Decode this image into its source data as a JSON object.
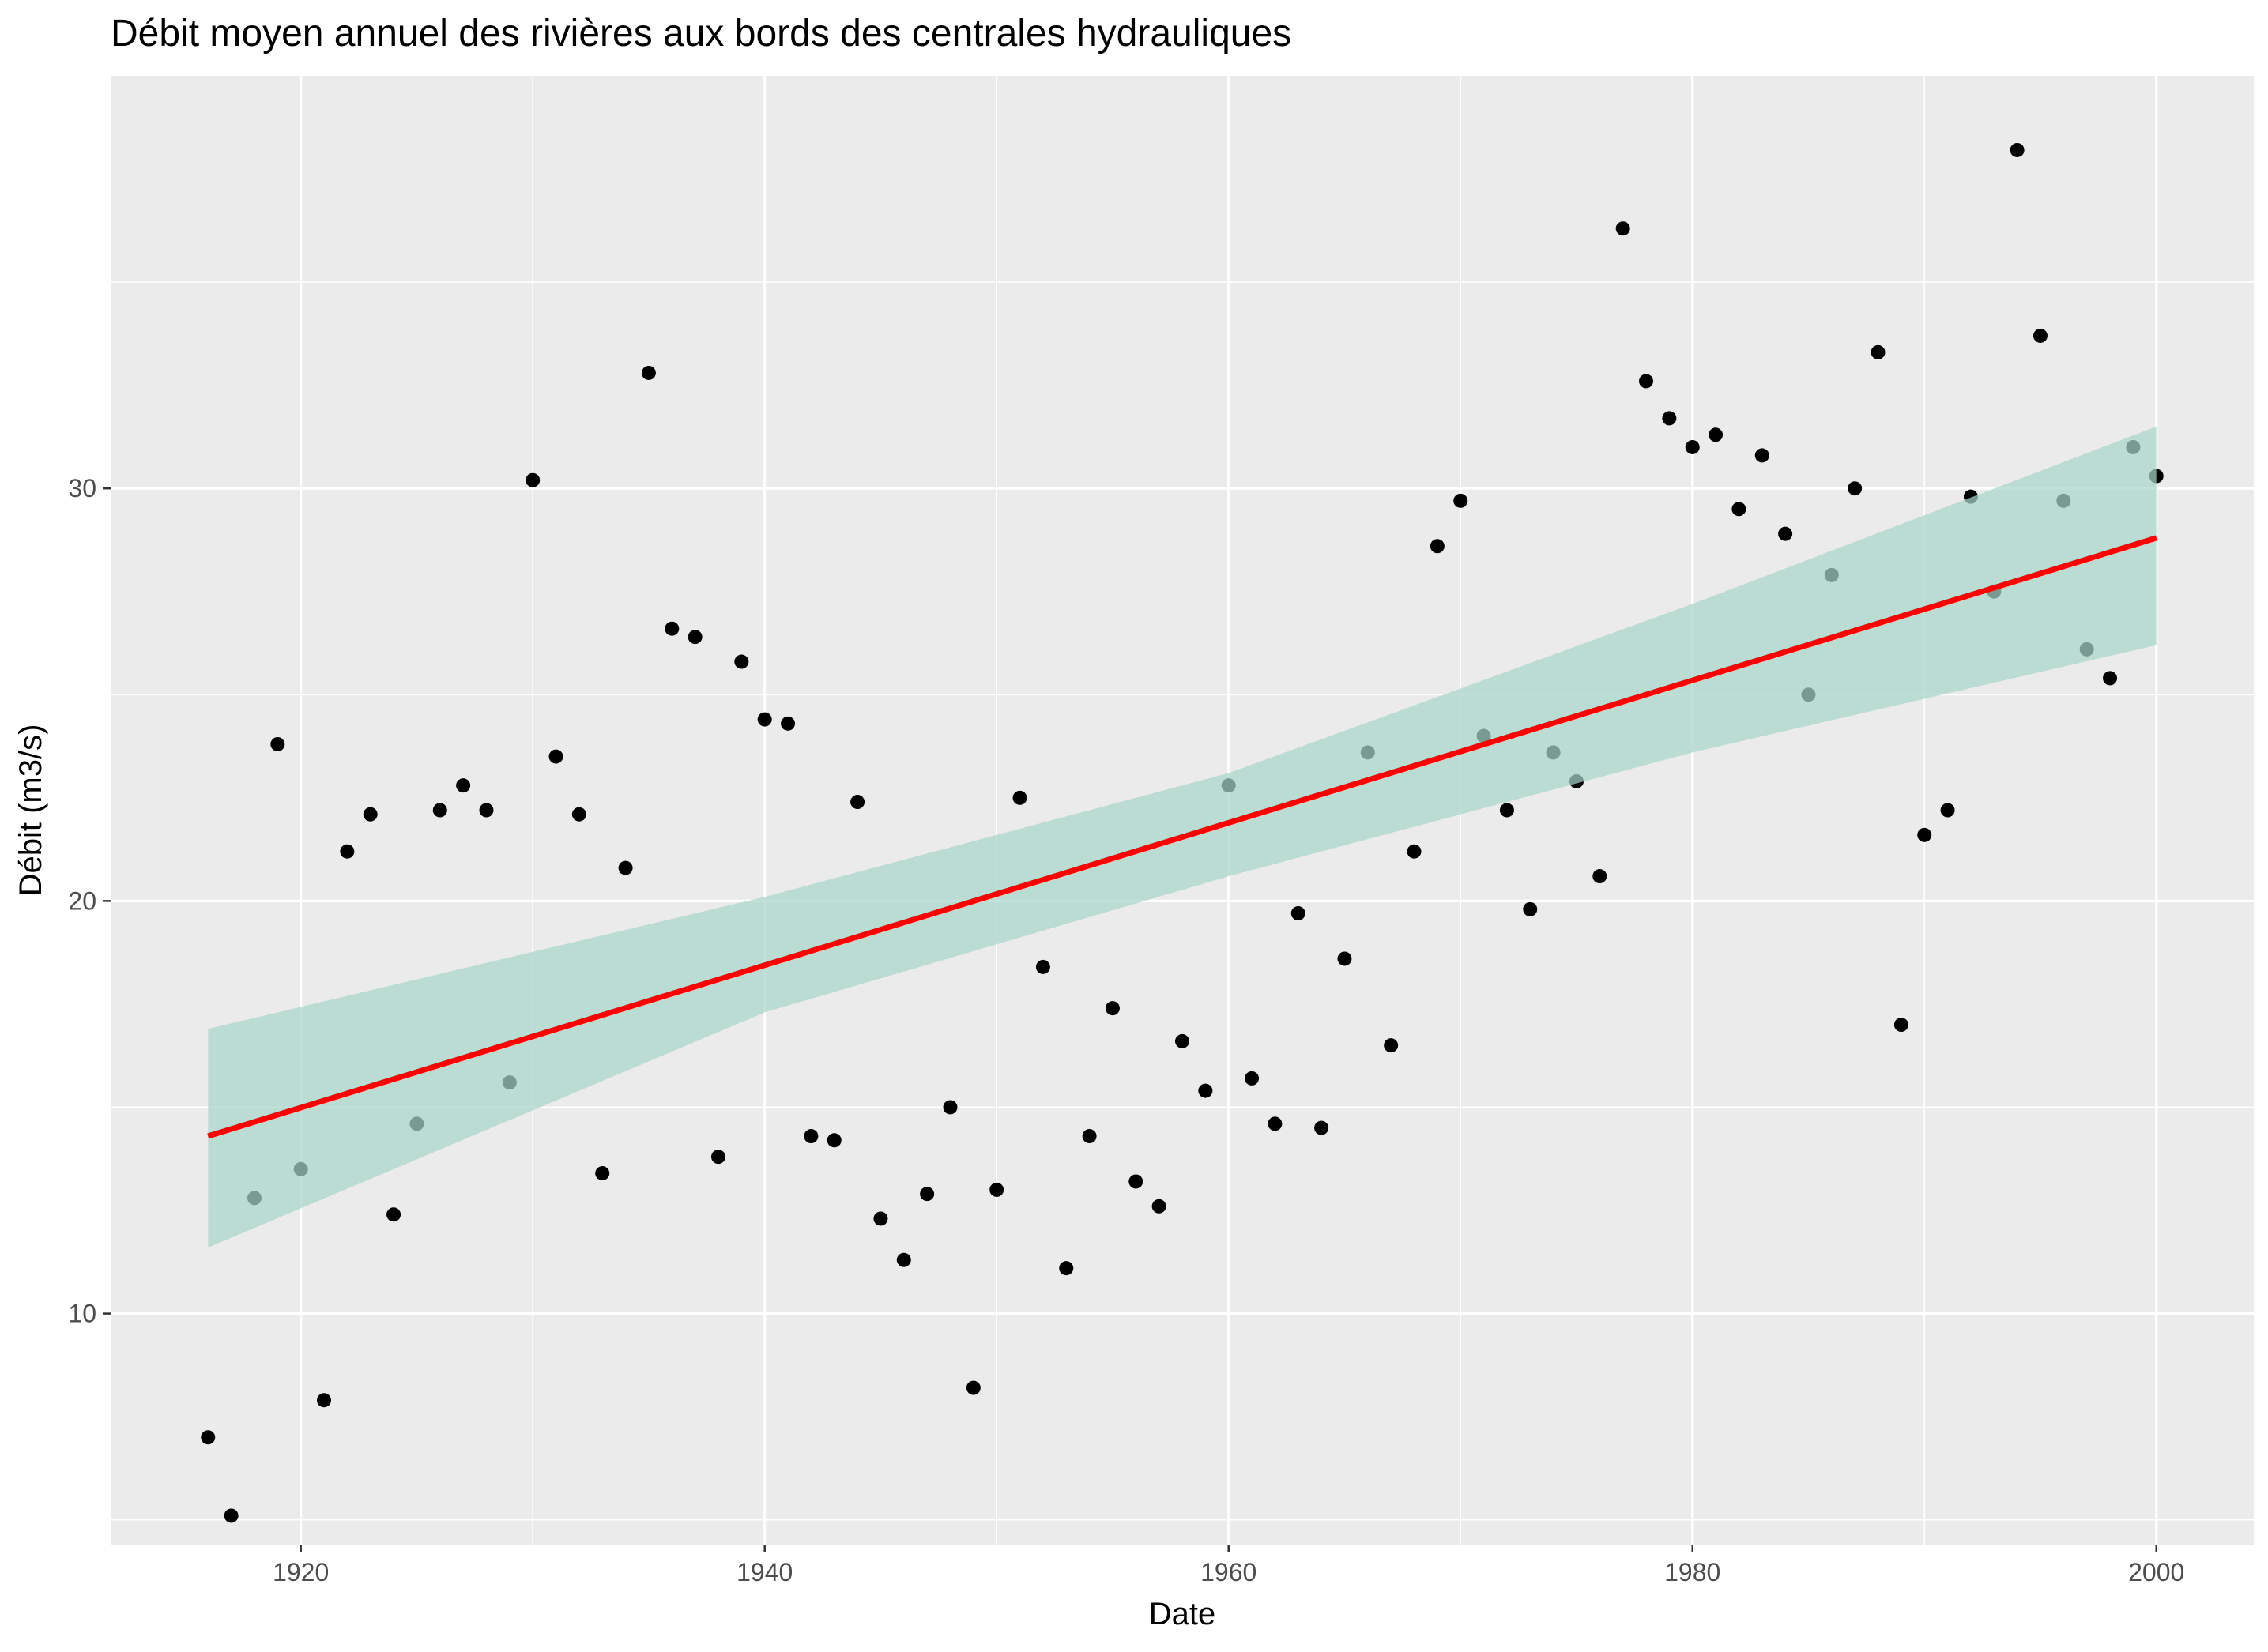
{
  "chart_data": {
    "type": "scatter",
    "title": "Débit moyen annuel des rivières aux bords des centrales hydrauliques",
    "xlabel": "Date",
    "ylabel": "Débit (m3/s)",
    "xlim": [
      1911.8,
      2004.2
    ],
    "ylim": [
      4.4,
      40.0
    ],
    "x_ticks": [
      1920,
      1940,
      1960,
      1980,
      2000
    ],
    "y_ticks": [
      10,
      20,
      30
    ],
    "grid": true,
    "legend": "none",
    "colors": {
      "panel": "#ebebeb",
      "grid": "#ffffff",
      "points": "#000000",
      "trend": "#ff0000",
      "band": "#a8d5c7"
    },
    "points": [
      {
        "x": 1916,
        "y": 7.0
      },
      {
        "x": 1917,
        "y": 5.1
      },
      {
        "x": 1918,
        "y": 12.8
      },
      {
        "x": 1919,
        "y": 23.8
      },
      {
        "x": 1920,
        "y": 13.5
      },
      {
        "x": 1921,
        "y": 7.9
      },
      {
        "x": 1922,
        "y": 21.2
      },
      {
        "x": 1923,
        "y": 22.1
      },
      {
        "x": 1924,
        "y": 12.4
      },
      {
        "x": 1925,
        "y": 14.6
      },
      {
        "x": 1926,
        "y": 22.2
      },
      {
        "x": 1927,
        "y": 22.8
      },
      {
        "x": 1928,
        "y": 22.2
      },
      {
        "x": 1929,
        "y": 15.6
      },
      {
        "x": 1930,
        "y": 30.2
      },
      {
        "x": 1931,
        "y": 23.5
      },
      {
        "x": 1932,
        "y": 22.1
      },
      {
        "x": 1933,
        "y": 13.4
      },
      {
        "x": 1934,
        "y": 20.8
      },
      {
        "x": 1935,
        "y": 32.8
      },
      {
        "x": 1936,
        "y": 26.6
      },
      {
        "x": 1937,
        "y": 26.4
      },
      {
        "x": 1938,
        "y": 13.8
      },
      {
        "x": 1939,
        "y": 25.8
      },
      {
        "x": 1940,
        "y": 24.4
      },
      {
        "x": 1941,
        "y": 24.3
      },
      {
        "x": 1942,
        "y": 14.3
      },
      {
        "x": 1943,
        "y": 14.2
      },
      {
        "x": 1944,
        "y": 22.4
      },
      {
        "x": 1945,
        "y": 12.3
      },
      {
        "x": 1946,
        "y": 11.3
      },
      {
        "x": 1947,
        "y": 12.9
      },
      {
        "x": 1948,
        "y": 15.0
      },
      {
        "x": 1949,
        "y": 8.2
      },
      {
        "x": 1950,
        "y": 13.0
      },
      {
        "x": 1951,
        "y": 22.5
      },
      {
        "x": 1952,
        "y": 18.4
      },
      {
        "x": 1953,
        "y": 11.1
      },
      {
        "x": 1954,
        "y": 14.3
      },
      {
        "x": 1955,
        "y": 17.4
      },
      {
        "x": 1956,
        "y": 13.2
      },
      {
        "x": 1957,
        "y": 12.6
      },
      {
        "x": 1958,
        "y": 16.6
      },
      {
        "x": 1959,
        "y": 15.4
      },
      {
        "x": 1960,
        "y": 22.8
      },
      {
        "x": 1961,
        "y": 15.7
      },
      {
        "x": 1962,
        "y": 14.6
      },
      {
        "x": 1963,
        "y": 19.7
      },
      {
        "x": 1964,
        "y": 14.5
      },
      {
        "x": 1965,
        "y": 18.6
      },
      {
        "x": 1966,
        "y": 23.6
      },
      {
        "x": 1967,
        "y": 16.5
      },
      {
        "x": 1968,
        "y": 21.2
      },
      {
        "x": 1969,
        "y": 28.6
      },
      {
        "x": 1970,
        "y": 29.7
      },
      {
        "x": 1971,
        "y": 24.0
      },
      {
        "x": 1972,
        "y": 22.2
      },
      {
        "x": 1973,
        "y": 19.8
      },
      {
        "x": 1974,
        "y": 23.6
      },
      {
        "x": 1975,
        "y": 22.9
      },
      {
        "x": 1976,
        "y": 20.6
      },
      {
        "x": 1977,
        "y": 36.3
      },
      {
        "x": 1978,
        "y": 32.6
      },
      {
        "x": 1979,
        "y": 31.7
      },
      {
        "x": 1980,
        "y": 31.0
      },
      {
        "x": 1981,
        "y": 31.3
      },
      {
        "x": 1982,
        "y": 29.5
      },
      {
        "x": 1983,
        "y": 30.8
      },
      {
        "x": 1984,
        "y": 28.9
      },
      {
        "x": 1985,
        "y": 25.0
      },
      {
        "x": 1986,
        "y": 27.9
      },
      {
        "x": 1987,
        "y": 30.0
      },
      {
        "x": 1988,
        "y": 33.3
      },
      {
        "x": 1989,
        "y": 17.0
      },
      {
        "x": 1990,
        "y": 21.6
      },
      {
        "x": 1991,
        "y": 22.2
      },
      {
        "x": 1992,
        "y": 29.8
      },
      {
        "x": 1993,
        "y": 27.5
      },
      {
        "x": 1994,
        "y": 38.2
      },
      {
        "x": 1995,
        "y": 33.7
      },
      {
        "x": 1996,
        "y": 29.7
      },
      {
        "x": 1997,
        "y": 26.1
      },
      {
        "x": 1998,
        "y": 25.4
      },
      {
        "x": 1999,
        "y": 31.0
      },
      {
        "x": 2000,
        "y": 30.3
      }
    ],
    "trend": {
      "type": "linear",
      "x": [
        1916,
        2000
      ],
      "y": [
        14.3,
        28.8
      ]
    },
    "confidence_band": {
      "x": [
        1916,
        1940,
        1960,
        1980,
        2000
      ],
      "lower": [
        11.6,
        17.3,
        20.6,
        23.6,
        26.2
      ],
      "upper": [
        16.9,
        20.1,
        23.1,
        27.2,
        31.5
      ]
    }
  }
}
